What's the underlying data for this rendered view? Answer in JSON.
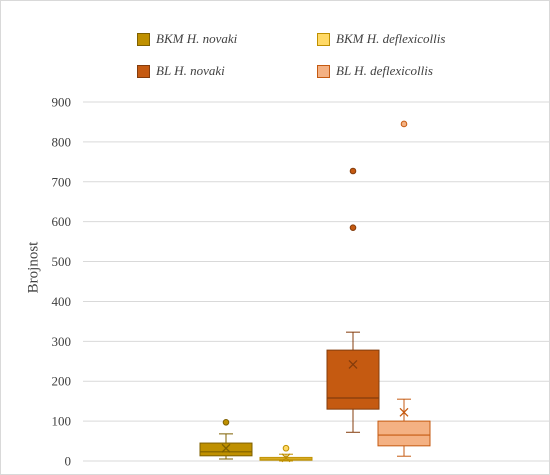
{
  "chart_data": {
    "type": "box",
    "title": "",
    "xlabel": "",
    "ylabel": "Brojnost",
    "ylim": [
      0,
      900
    ],
    "yticks": [
      "0",
      "100",
      "200",
      "300",
      "400",
      "500",
      "600",
      "700",
      "800",
      "900"
    ],
    "grid": true,
    "legend_position": "top",
    "series": [
      {
        "name": "BKM H. novaki",
        "color": "#bf9000",
        "edge": "#7f6000",
        "min": 5,
        "q1": 13,
        "median": 23,
        "q3": 45,
        "max": 68,
        "mean": 32,
        "outliers": [
          97
        ]
      },
      {
        "name": "BKM H. deflexicollis",
        "color": "#ffd966",
        "edge": "#bf9000",
        "min": 0,
        "q1": 2,
        "median": 5,
        "q3": 9,
        "max": 17,
        "mean": 8,
        "outliers": [
          32
        ]
      },
      {
        "name": "BL H. novaki",
        "color": "#c55a11",
        "edge": "#843c0c",
        "min": 72,
        "q1": 130,
        "median": 158,
        "q3": 278,
        "max": 323,
        "mean": 242,
        "outliers": [
          585,
          727
        ]
      },
      {
        "name": "BL H. deflexicollis",
        "color": "#f4b183",
        "edge": "#c55a11",
        "min": 12,
        "q1": 38,
        "median": 65,
        "q3": 100,
        "max": 155,
        "mean": 122,
        "outliers": [
          845
        ]
      }
    ]
  }
}
